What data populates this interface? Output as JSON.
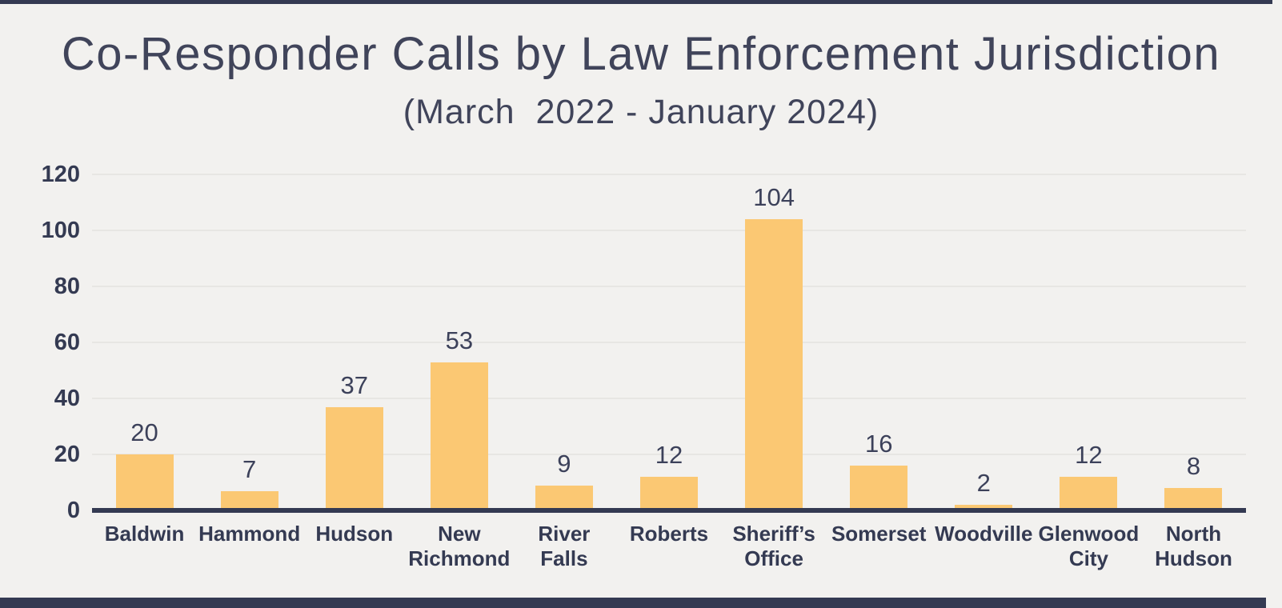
{
  "title": "Co-Responder Calls by Law Enforcement Jurisdiction",
  "subtitle": "(March  2022 - January 2024)",
  "colors": {
    "background": "#f2f1ef",
    "bar_fill": "#fbc873",
    "text_dark_navy": "#343a52",
    "gridline": "#e7e6e3",
    "accent_border": "#343a52"
  },
  "chart_data": {
    "type": "bar",
    "title": "Co-Responder Calls by Law Enforcement Jurisdiction",
    "subtitle": "(March  2022 - January 2024)",
    "categories": [
      "Baldwin",
      "Hammond",
      "Hudson",
      "New Richmond",
      "River Falls",
      "Roberts",
      "Sheriff’s Office",
      "Somerset",
      "Woodville",
      "Glenwood City",
      "North Hudson"
    ],
    "values": [
      20,
      7,
      37,
      53,
      9,
      12,
      104,
      16,
      2,
      12,
      8
    ],
    "xlabel": "",
    "ylabel": "",
    "ylim": [
      0,
      120
    ],
    "y_ticks": [
      0,
      20,
      40,
      60,
      80,
      100,
      120
    ],
    "grid": true,
    "legend": false,
    "data_labels": true,
    "bar_color": "#fbc873"
  }
}
